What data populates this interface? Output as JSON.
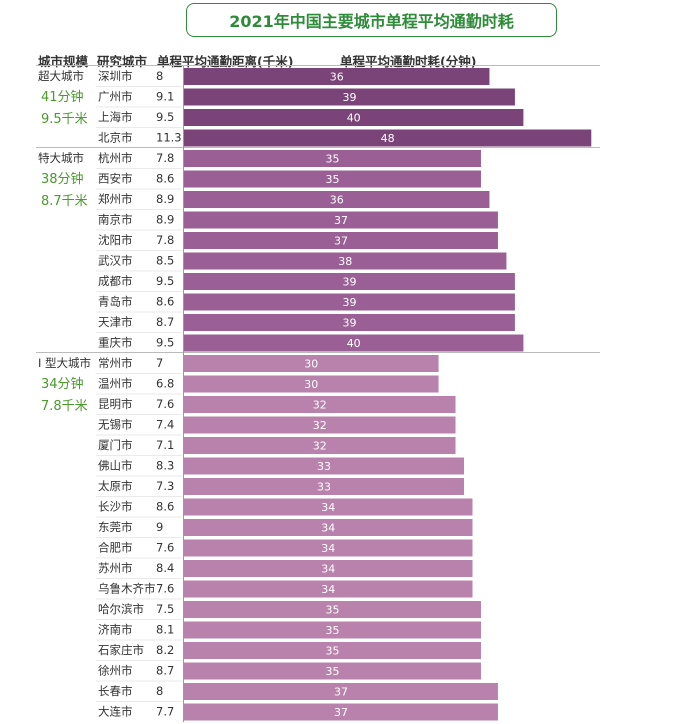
{
  "title": "2021年中国主要城市单程平均通勤时耗",
  "headers": {
    "tier": "城市规模",
    "city": "研究城市",
    "distance": "单程平均通勤距离(千米)",
    "time": "单程平均通勤时耗(分钟)"
  },
  "colors": {
    "title": "#2e8b3a",
    "tier_stat": "#4a9a2c",
    "bar_tier1": "#7a4478",
    "bar_tier2": "#9a6096",
    "bar_tier3": "#b982ac"
  },
  "chart_data": {
    "type": "bar",
    "orientation": "horizontal",
    "title": "2021年中国主要城市单程平均通勤时耗",
    "groups": [
      {
        "name": "超大城市",
        "avg_time": "41分钟",
        "avg_distance": "9.5千米",
        "cities": [
          {
            "city": "深圳市",
            "distance": "8",
            "time": 36
          },
          {
            "city": "广州市",
            "distance": "9.1",
            "time": 39
          },
          {
            "city": "上海市",
            "distance": "9.5",
            "time": 40
          },
          {
            "city": "北京市",
            "distance": "11.3",
            "time": 48
          }
        ]
      },
      {
        "name": "特大城市",
        "avg_time": "38分钟",
        "avg_distance": "8.7千米",
        "cities": [
          {
            "city": "杭州市",
            "distance": "7.8",
            "time": 35
          },
          {
            "city": "西安市",
            "distance": "8.6",
            "time": 35
          },
          {
            "city": "郑州市",
            "distance": "8.9",
            "time": 36
          },
          {
            "city": "南京市",
            "distance": "8.9",
            "time": 37
          },
          {
            "city": "沈阳市",
            "distance": "7.8",
            "time": 37
          },
          {
            "city": "武汉市",
            "distance": "8.5",
            "time": 38
          },
          {
            "city": "成都市",
            "distance": "9.5",
            "time": 39
          },
          {
            "city": "青岛市",
            "distance": "8.6",
            "time": 39
          },
          {
            "city": "天津市",
            "distance": "8.7",
            "time": 39
          },
          {
            "city": "重庆市",
            "distance": "9.5",
            "time": 40
          }
        ]
      },
      {
        "name": "I 型大城市",
        "avg_time": "34分钟",
        "avg_distance": "7.8千米",
        "cities": [
          {
            "city": "常州市",
            "distance": "7",
            "time": 30
          },
          {
            "city": "温州市",
            "distance": "6.8",
            "time": 30
          },
          {
            "city": "昆明市",
            "distance": "7.6",
            "time": 32
          },
          {
            "city": "无锡市",
            "distance": "7.4",
            "time": 32
          },
          {
            "city": "厦门市",
            "distance": "7.1",
            "time": 32
          },
          {
            "city": "佛山市",
            "distance": "8.3",
            "time": 33
          },
          {
            "city": "太原市",
            "distance": "7.3",
            "time": 33
          },
          {
            "city": "长沙市",
            "distance": "8.6",
            "time": 34
          },
          {
            "city": "东莞市",
            "distance": "9",
            "time": 34
          },
          {
            "city": "合肥市",
            "distance": "7.6",
            "time": 34
          },
          {
            "city": "苏州市",
            "distance": "8.4",
            "time": 34
          },
          {
            "city": "乌鲁木齐市",
            "distance": "7.6",
            "time": 34
          },
          {
            "city": "哈尔滨市",
            "distance": "7.5",
            "time": 35
          },
          {
            "city": "济南市",
            "distance": "8.1",
            "time": 35
          },
          {
            "city": "石家庄市",
            "distance": "8.2",
            "time": 35
          },
          {
            "city": "徐州市",
            "distance": "8.7",
            "time": 35
          },
          {
            "city": "长春市",
            "distance": "8",
            "time": 37
          },
          {
            "city": "大连市",
            "distance": "7.7",
            "time": 37
          }
        ]
      }
    ]
  }
}
